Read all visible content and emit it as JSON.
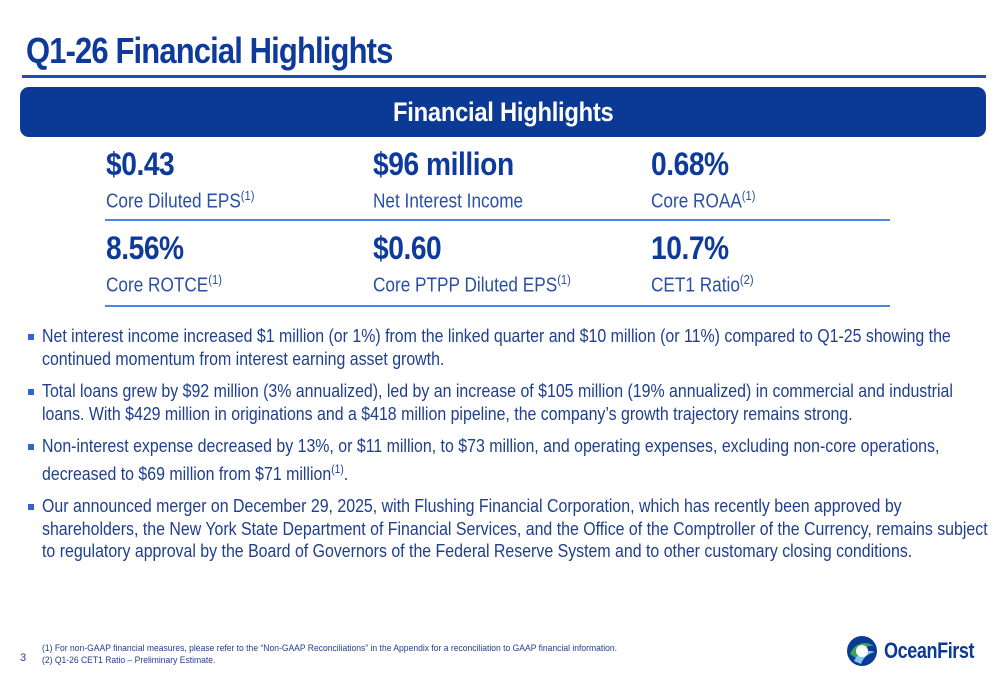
{
  "page": {
    "title": "Q1-26 Financial Highlights",
    "number": "3"
  },
  "banner": {
    "label": "Financial Highlights"
  },
  "metrics": [
    {
      "value": "$0.43",
      "label": "Core Diluted EPS",
      "note": "(1)"
    },
    {
      "value": "$96 million",
      "label": "Net Interest Income",
      "note": ""
    },
    {
      "value": "0.68%",
      "label": "Core ROAA",
      "note": "(1)"
    },
    {
      "value": "8.56%",
      "label": "Core ROTCE",
      "note": "(1)"
    },
    {
      "value": "$0.60",
      "label": "Core PTPP Diluted EPS",
      "note": "(1)"
    },
    {
      "value": "10.7%",
      "label": "CET1 Ratio",
      "note": "(2)"
    }
  ],
  "bullets": [
    {
      "text": "Net interest income increased $1 million (or 1%) from the linked quarter and $10 million (or 11%) compared to Q1-25 showing the continued momentum from interest earning asset growth.",
      "note": "",
      "tail": ""
    },
    {
      "text": "Total loans grew by $92 million (3% annualized), led by an increase of $105 million (19% annualized) in commercial and industrial loans. With $429 million in originations and a $418 million pipeline, the company’s growth trajectory remains strong.",
      "note": "",
      "tail": ""
    },
    {
      "text": "Non-interest expense decreased by 13%, or $11 million, to $73 million, and operating expenses, excluding non-core operations, decreased to $69 million from $71 million",
      "note": "(1)",
      "tail": "."
    },
    {
      "text": "Our announced merger on December 29, 2025, with Flushing Financial Corporation, which has recently been approved by shareholders, the New York State Department of Financial Services, and the Office of the Comptroller of the Currency, remains subject to regulatory approval by the Board of Governors of the Federal Reserve System and to other customary closing conditions.",
      "note": "",
      "tail": ""
    }
  ],
  "footnotes": [
    "(1) For non-GAAP financial measures, please refer to the “Non-GAAP Reconciliations” in the Appendix for a reconciliation to GAAP financial information.",
    "(2) Q1-26 CET1 Ratio – Preliminary Estimate."
  ],
  "logo": {
    "text": "OceanFirst"
  },
  "colors": {
    "brand_navy": "#0b3a96",
    "accent_blue": "#4a86e8",
    "text_blue": "#1f3f8f",
    "logo_green": "#3aa655"
  }
}
